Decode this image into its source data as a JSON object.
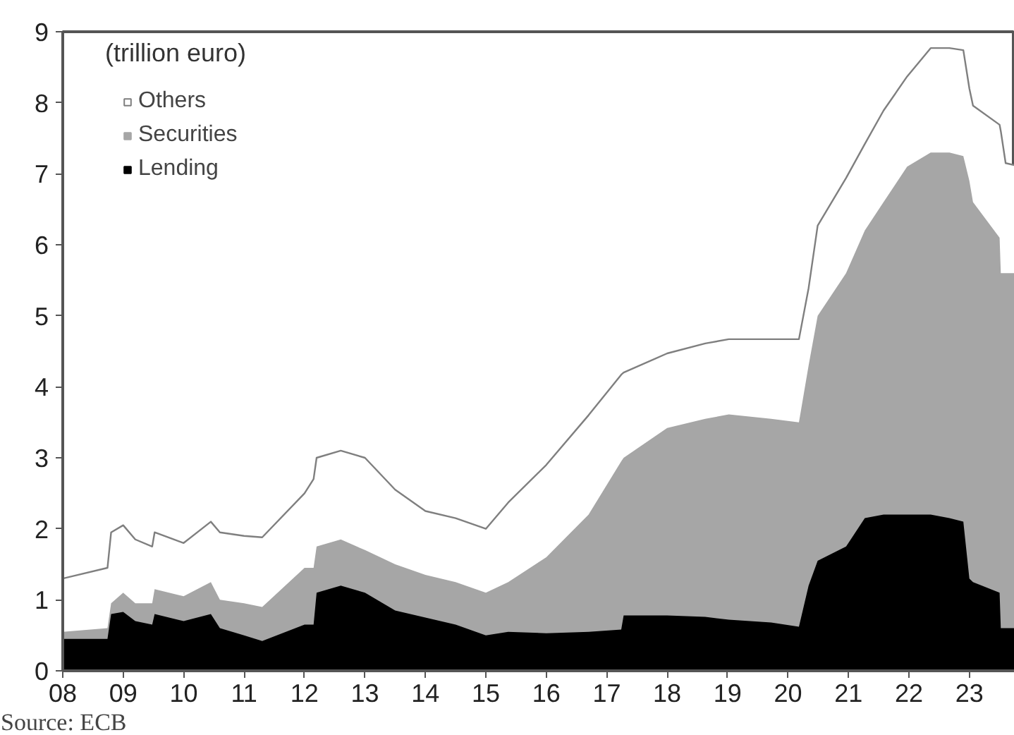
{
  "chart_data": {
    "type": "area",
    "stacked": true,
    "ylabel": "(trillion euro)",
    "annotations": [
      "Source: ECB"
    ],
    "x": [
      2008.0,
      2008.74,
      2008.8,
      2009.0,
      2009.2,
      2009.48,
      2009.52,
      2010.0,
      2010.45,
      2010.6,
      2011.0,
      2011.3,
      2012.0,
      2012.15,
      2012.2,
      2012.6,
      2013.0,
      2013.5,
      2014.0,
      2014.5,
      2015.0,
      2015.37,
      2016.0,
      2016.7,
      2017.24,
      2017.28,
      2018.0,
      2018.63,
      2019.02,
      2019.72,
      2020.18,
      2020.34,
      2020.49,
      2020.96,
      2021.27,
      2021.58,
      2021.97,
      2022.36,
      2022.67,
      2022.9,
      2023.0,
      2023.06,
      2023.5,
      2023.52,
      2023.6,
      2023.75
    ],
    "series": [
      {
        "name": "Lending",
        "color": "#000000",
        "values": [
          0.45,
          0.45,
          0.8,
          0.83,
          0.7,
          0.65,
          0.8,
          0.7,
          0.8,
          0.6,
          0.5,
          0.42,
          0.65,
          0.65,
          1.1,
          1.2,
          1.1,
          0.85,
          0.75,
          0.65,
          0.5,
          0.55,
          0.53,
          0.55,
          0.58,
          0.78,
          0.78,
          0.76,
          0.72,
          0.68,
          0.62,
          1.2,
          1.55,
          1.75,
          2.15,
          2.2,
          2.2,
          2.2,
          2.15,
          2.1,
          1.3,
          1.25,
          1.1,
          0.6,
          0.6,
          0.6
        ]
      },
      {
        "name": "Securities",
        "color": "#a6a6a6",
        "values": [
          0.1,
          0.15,
          0.15,
          0.27,
          0.25,
          0.3,
          0.35,
          0.35,
          0.45,
          0.4,
          0.45,
          0.48,
          0.8,
          0.8,
          0.65,
          0.65,
          0.6,
          0.65,
          0.6,
          0.6,
          0.6,
          0.7,
          1.07,
          1.65,
          2.37,
          2.22,
          2.64,
          2.79,
          2.89,
          2.87,
          2.88,
          3.1,
          3.45,
          3.85,
          4.05,
          4.4,
          4.9,
          5.1,
          5.15,
          5.15,
          5.6,
          5.35,
          5.0,
          5.0,
          5.0,
          5.0
        ]
      },
      {
        "name": "Others",
        "color": "#ffffff",
        "values": [
          0.75,
          0.85,
          1.0,
          0.95,
          0.9,
          0.8,
          0.8,
          0.75,
          0.85,
          0.95,
          0.95,
          0.98,
          1.05,
          1.25,
          1.25,
          1.25,
          1.3,
          1.05,
          0.9,
          0.9,
          0.9,
          1.12,
          1.3,
          1.4,
          1.22,
          1.2,
          1.05,
          1.06,
          1.06,
          1.12,
          1.17,
          1.09,
          1.27,
          1.34,
          1.22,
          1.29,
          1.27,
          1.47,
          1.47,
          1.49,
          1.3,
          1.36,
          1.59,
          2.0,
          1.55,
          1.52
        ]
      }
    ],
    "xlim": [
      2008,
      2023.75
    ],
    "ylim": [
      0,
      9
    ],
    "xticks": [
      {
        "value": 2008,
        "label": "08"
      },
      {
        "value": 2009,
        "label": "09"
      },
      {
        "value": 2010,
        "label": "10"
      },
      {
        "value": 2011,
        "label": "11"
      },
      {
        "value": 2012,
        "label": "12"
      },
      {
        "value": 2013,
        "label": "13"
      },
      {
        "value": 2014,
        "label": "14"
      },
      {
        "value": 2015,
        "label": "15"
      },
      {
        "value": 2016,
        "label": "16"
      },
      {
        "value": 2017,
        "label": "17"
      },
      {
        "value": 2018,
        "label": "18"
      },
      {
        "value": 2019,
        "label": "19"
      },
      {
        "value": 2020,
        "label": "20"
      },
      {
        "value": 2021,
        "label": "21"
      },
      {
        "value": 2022,
        "label": "22"
      },
      {
        "value": 2023,
        "label": "23"
      }
    ],
    "yticks": [
      0,
      1,
      2,
      3,
      4,
      5,
      6,
      7,
      8,
      9
    ],
    "legend": "top left",
    "grid": false
  }
}
